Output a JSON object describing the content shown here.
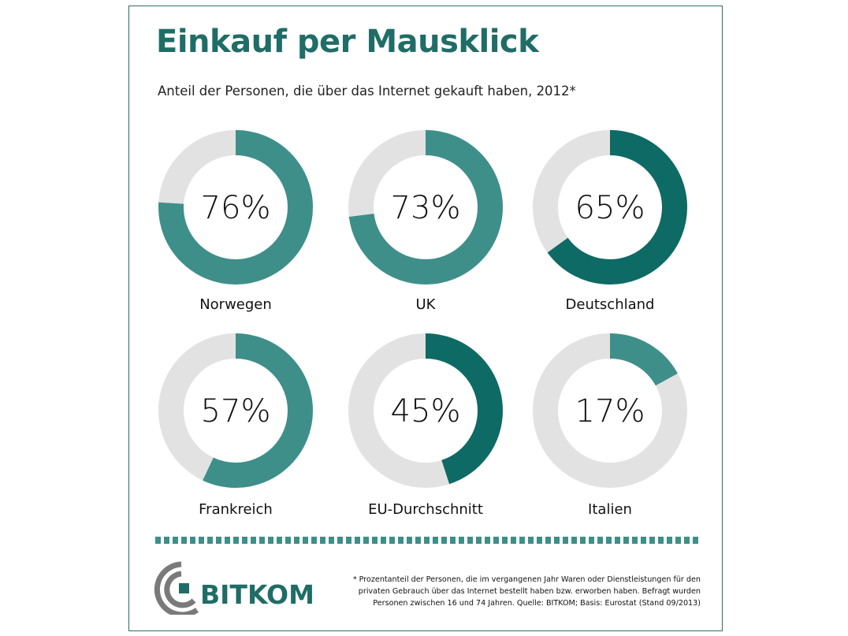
{
  "header": {
    "title": "Einkauf per Mausklick",
    "subtitle": "Anteil der Personen, die über das Internet gekauft haben, 2012*"
  },
  "chart_data": {
    "type": "pie",
    "unit": "%",
    "categories": [
      "Norwegen",
      "UK",
      "Deutschland",
      "Frankreich",
      "EU-Durchschnitt",
      "Italien"
    ],
    "values": [
      76,
      73,
      65,
      57,
      45,
      17
    ],
    "labels": [
      "76%",
      "73%",
      "65%",
      "57%",
      "45%",
      "17%"
    ],
    "highlighted": [
      "Deutschland",
      "EU-Durchschnitt"
    ]
  },
  "colors": {
    "standard": "#3e8f8a",
    "highlight": "#0e6a64",
    "remainder": "#e2e2e2",
    "title": "#1f6d66"
  },
  "footer": {
    "logo_text": "BITKOM",
    "footnote_lines": [
      "* Prozentanteil der Personen, die im vergangenen Jahr Waren oder Dienstleistungen für den",
      "privaten Gebrauch über das Internet bestellt haben bzw. erworben haben. Befragt wurden",
      "Personen zwischen 16 und 74 Jahren. Quelle: BITKOM; Basis: Eurostat (Stand 09/2013)"
    ]
  }
}
